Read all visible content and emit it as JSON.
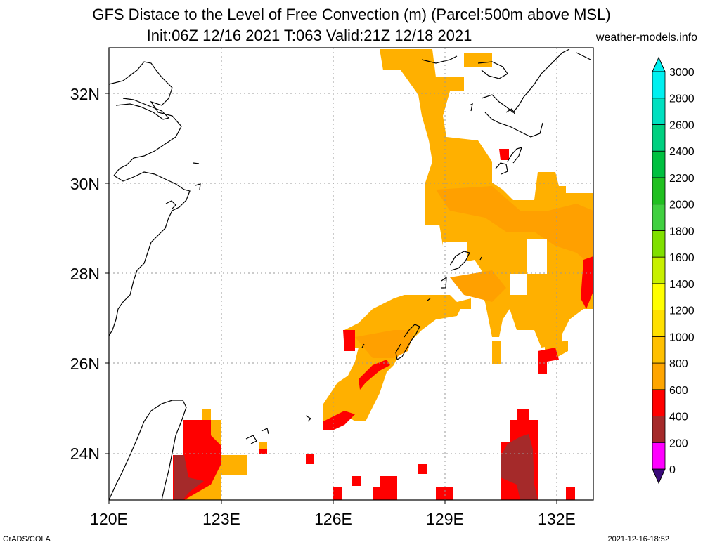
{
  "title": {
    "line1": "GFS Distace to the Level of Free Convection (m) (Parcel:500m above MSL)",
    "line2": "Init:06Z 12/16 2021 T:063 Valid:21Z 12/18 2021",
    "credit": "weather-models.info"
  },
  "axes": {
    "lon_labels": [
      "120E",
      "123E",
      "126E",
      "129E",
      "132E"
    ],
    "lat_labels": [
      "24N",
      "26N",
      "28N",
      "30N",
      "32N"
    ]
  },
  "colorbar": {
    "levels": [
      "0",
      "200",
      "400",
      "600",
      "800",
      "1000",
      "1200",
      "1400",
      "1600",
      "1800",
      "2000",
      "2200",
      "2400",
      "2600",
      "2800",
      "3000"
    ],
    "colors": [
      "#3a0a7a",
      "#ff00ff",
      "#a52a2a",
      "#ff0000",
      "#ffa500",
      "#ffc000",
      "#ffe000",
      "#ffff00",
      "#c8f000",
      "#80e000",
      "#40d040",
      "#20c020",
      "#00c040",
      "#00d080",
      "#00e0c0",
      "#00f0f0"
    ]
  },
  "footer": {
    "left": "GrADS/COLA",
    "right": "2021-12-16-18:52"
  }
}
